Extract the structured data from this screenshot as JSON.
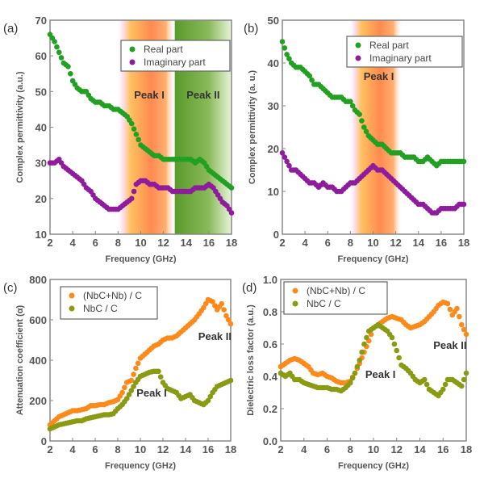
{
  "chart_data": [
    {
      "type": "scatter",
      "panel_label": "(a)",
      "xlabel": "Frequency (GHz)",
      "ylabel": "Complex permittivity (a.u.)",
      "xlim": [
        2,
        18
      ],
      "ylim": [
        10,
        70
      ],
      "xticks": [
        2,
        4,
        6,
        8,
        10,
        12,
        14,
        16,
        18
      ],
      "yticks": [
        10,
        20,
        30,
        40,
        50,
        60,
        70
      ],
      "legend_position": "top-right",
      "bands": [
        {
          "range": [
            8.5,
            13
          ],
          "color": "#ff9a3c",
          "label": "Peak I",
          "label_y": 48
        },
        {
          "range": [
            13,
            18
          ],
          "color": "#5a9a2a",
          "label": "Peak II",
          "label_y": 48
        }
      ],
      "annotations": [],
      "x": [
        2,
        2.4,
        2.8,
        3.2,
        3.6,
        4,
        4.4,
        4.8,
        5.2,
        5.6,
        6,
        6.4,
        6.8,
        7.2,
        7.6,
        8,
        8.4,
        8.8,
        9.2,
        9.6,
        10,
        10.4,
        10.8,
        11.2,
        11.6,
        12,
        12.4,
        12.8,
        13.2,
        13.6,
        14,
        14.4,
        14.8,
        15.2,
        15.6,
        16,
        16.4,
        16.8,
        17.2,
        17.6,
        18
      ],
      "series": [
        {
          "name": "Real part",
          "color": "#22a022",
          "values": [
            66,
            64,
            61,
            58,
            57,
            53,
            51,
            50,
            50,
            48,
            47,
            47,
            46,
            46,
            45,
            45,
            44,
            43,
            41,
            38,
            35,
            34,
            33,
            32,
            32,
            31,
            31,
            31,
            31,
            31,
            31,
            31,
            30,
            31,
            30,
            28,
            27,
            26,
            25,
            24,
            23
          ]
        },
        {
          "name": "Imaginary part",
          "color": "#8e1c9c",
          "values": [
            30,
            30,
            31,
            29,
            28,
            27,
            26,
            25,
            23,
            22,
            20,
            19,
            18,
            17,
            17,
            17,
            18,
            19,
            20,
            24,
            25,
            25,
            24,
            24,
            23,
            23,
            23,
            22,
            22,
            22,
            22,
            22,
            23,
            23,
            23,
            24,
            23,
            21,
            19,
            18,
            16
          ]
        }
      ]
    },
    {
      "type": "scatter",
      "panel_label": "(b)",
      "xlabel": "Frequency (GHz)",
      "ylabel": "Complex permittivity (a. u.)",
      "xlim": [
        2,
        18
      ],
      "ylim": [
        0,
        50
      ],
      "xticks": [
        2,
        4,
        6,
        8,
        10,
        12,
        14,
        16,
        18
      ],
      "yticks": [
        0,
        10,
        20,
        30,
        40,
        50
      ],
      "legend_position": "top-right",
      "bands": [
        {
          "range": [
            8.5,
            12.5
          ],
          "color": "#ff9a3c",
          "label": "Peak I",
          "label_y": 36
        }
      ],
      "annotations": [],
      "x": [
        2,
        2.4,
        2.8,
        3.2,
        3.6,
        4,
        4.4,
        4.8,
        5.2,
        5.6,
        6,
        6.4,
        6.8,
        7.2,
        7.6,
        8,
        8.4,
        8.8,
        9.2,
        9.6,
        10,
        10.4,
        10.8,
        11.2,
        11.6,
        12,
        12.4,
        12.8,
        13.2,
        13.6,
        14,
        14.4,
        14.8,
        15.2,
        15.6,
        16,
        16.4,
        16.8,
        17.2,
        17.6,
        18
      ],
      "series": [
        {
          "name": "Real part",
          "color": "#22a022",
          "values": [
            45,
            42,
            40,
            39,
            39,
            38,
            37,
            35,
            35,
            34,
            33,
            32,
            32,
            32,
            31,
            31,
            29,
            28,
            25,
            23,
            22,
            21,
            21,
            20,
            19,
            19,
            19,
            18,
            18,
            18,
            17,
            17,
            18,
            17,
            16,
            17,
            17,
            17,
            17,
            17,
            17
          ]
        },
        {
          "name": "Imaginary part",
          "color": "#8e1c9c",
          "values": [
            19,
            17,
            15,
            15,
            14,
            13,
            12,
            12,
            11,
            12,
            11,
            11,
            10,
            10,
            11,
            12,
            12,
            13,
            14,
            15,
            16,
            15,
            15,
            14,
            13,
            12,
            11,
            10,
            9,
            8,
            7,
            7,
            6,
            5,
            5,
            6,
            6,
            6,
            6,
            7,
            7
          ]
        }
      ]
    },
    {
      "type": "scatter",
      "panel_label": "(c)",
      "xlabel": "Frequency (GHz)",
      "ylabel": "Attenuation coefficient (α)",
      "xlim": [
        2,
        18
      ],
      "ylim": [
        0,
        800
      ],
      "xticks": [
        2,
        4,
        6,
        8,
        10,
        12,
        14,
        16,
        18
      ],
      "yticks": [
        0,
        200,
        400,
        600,
        800
      ],
      "legend_position": "top-left",
      "bands": [],
      "annotations": [
        {
          "text": "Peak II",
          "x": 16.6,
          "y": 500
        },
        {
          "text": "Peak I",
          "x": 11.0,
          "y": 220
        }
      ],
      "x": [
        2,
        2.4,
        2.8,
        3.2,
        3.6,
        4,
        4.4,
        4.8,
        5.2,
        5.6,
        6,
        6.4,
        6.8,
        7.2,
        7.6,
        8,
        8.4,
        8.8,
        9.2,
        9.6,
        10,
        10.4,
        10.8,
        11.2,
        11.6,
        12,
        12.4,
        12.8,
        13.2,
        13.6,
        14,
        14.4,
        14.8,
        15.2,
        15.6,
        16,
        16.4,
        16.8,
        17.2,
        17.6,
        18
      ],
      "series": [
        {
          "name": "(NbC+Nb) / C",
          "color": "#ff8a1c",
          "values": [
            80,
            100,
            120,
            130,
            140,
            150,
            150,
            155,
            160,
            175,
            175,
            180,
            180,
            190,
            195,
            205,
            240,
            290,
            300,
            360,
            410,
            430,
            450,
            470,
            480,
            500,
            510,
            510,
            520,
            540,
            560,
            580,
            600,
            630,
            660,
            700,
            690,
            650,
            680,
            620,
            580
          ]
        },
        {
          "name": "NbC / C",
          "color": "#8a9a12",
          "values": [
            60,
            70,
            80,
            85,
            90,
            95,
            100,
            100,
            110,
            115,
            120,
            125,
            130,
            130,
            135,
            160,
            180,
            210,
            250,
            290,
            320,
            330,
            340,
            345,
            345,
            290,
            260,
            250,
            240,
            210,
            220,
            230,
            200,
            190,
            180,
            200,
            240,
            270,
            280,
            290,
            300
          ]
        }
      ]
    },
    {
      "type": "scatter",
      "panel_label": "(d)",
      "xlabel": "Frequency (GHz)",
      "ylabel": "Dielectric loss factor (a.u.)",
      "xlim": [
        2,
        18
      ],
      "ylim": [
        0,
        1.0
      ],
      "xticks": [
        2,
        4,
        6,
        8,
        10,
        12,
        14,
        16,
        18
      ],
      "yticks": [
        "0.0",
        "0.2",
        "0.4",
        "0.6",
        "0.8",
        "1.0"
      ],
      "legend_position": "top-left",
      "bands": [],
      "annotations": [
        {
          "text": "Peak II",
          "x": 16.6,
          "y": 0.57
        },
        {
          "text": "Peak I",
          "x": 10.6,
          "y": 0.39
        }
      ],
      "x": [
        2,
        2.4,
        2.8,
        3.2,
        3.6,
        4,
        4.4,
        4.8,
        5.2,
        5.6,
        6,
        6.4,
        6.8,
        7.2,
        7.6,
        8,
        8.4,
        8.8,
        9.2,
        9.6,
        10,
        10.4,
        10.8,
        11.2,
        11.6,
        12,
        12.4,
        12.8,
        13.2,
        13.6,
        14,
        14.4,
        14.8,
        15.2,
        15.6,
        16,
        16.4,
        16.8,
        17.2,
        17.6,
        18
      ],
      "series": [
        {
          "name": "(NbC+Nb) / C",
          "color": "#ff8a1c",
          "values": [
            0.46,
            0.48,
            0.5,
            0.51,
            0.5,
            0.48,
            0.46,
            0.42,
            0.41,
            0.42,
            0.4,
            0.39,
            0.37,
            0.36,
            0.36,
            0.37,
            0.42,
            0.48,
            0.55,
            0.62,
            0.7,
            0.72,
            0.74,
            0.76,
            0.77,
            0.76,
            0.75,
            0.72,
            0.7,
            0.71,
            0.72,
            0.74,
            0.77,
            0.8,
            0.84,
            0.86,
            0.85,
            0.78,
            0.82,
            0.72,
            0.66
          ]
        },
        {
          "name": "NbC / C",
          "color": "#8a9a12",
          "values": [
            0.42,
            0.4,
            0.42,
            0.38,
            0.38,
            0.36,
            0.35,
            0.34,
            0.33,
            0.33,
            0.33,
            0.32,
            0.32,
            0.31,
            0.33,
            0.36,
            0.42,
            0.5,
            0.6,
            0.68,
            0.7,
            0.72,
            0.7,
            0.68,
            0.64,
            0.56,
            0.47,
            0.45,
            0.42,
            0.38,
            0.36,
            0.38,
            0.32,
            0.3,
            0.28,
            0.32,
            0.38,
            0.38,
            0.36,
            0.34,
            0.42
          ]
        }
      ]
    }
  ]
}
